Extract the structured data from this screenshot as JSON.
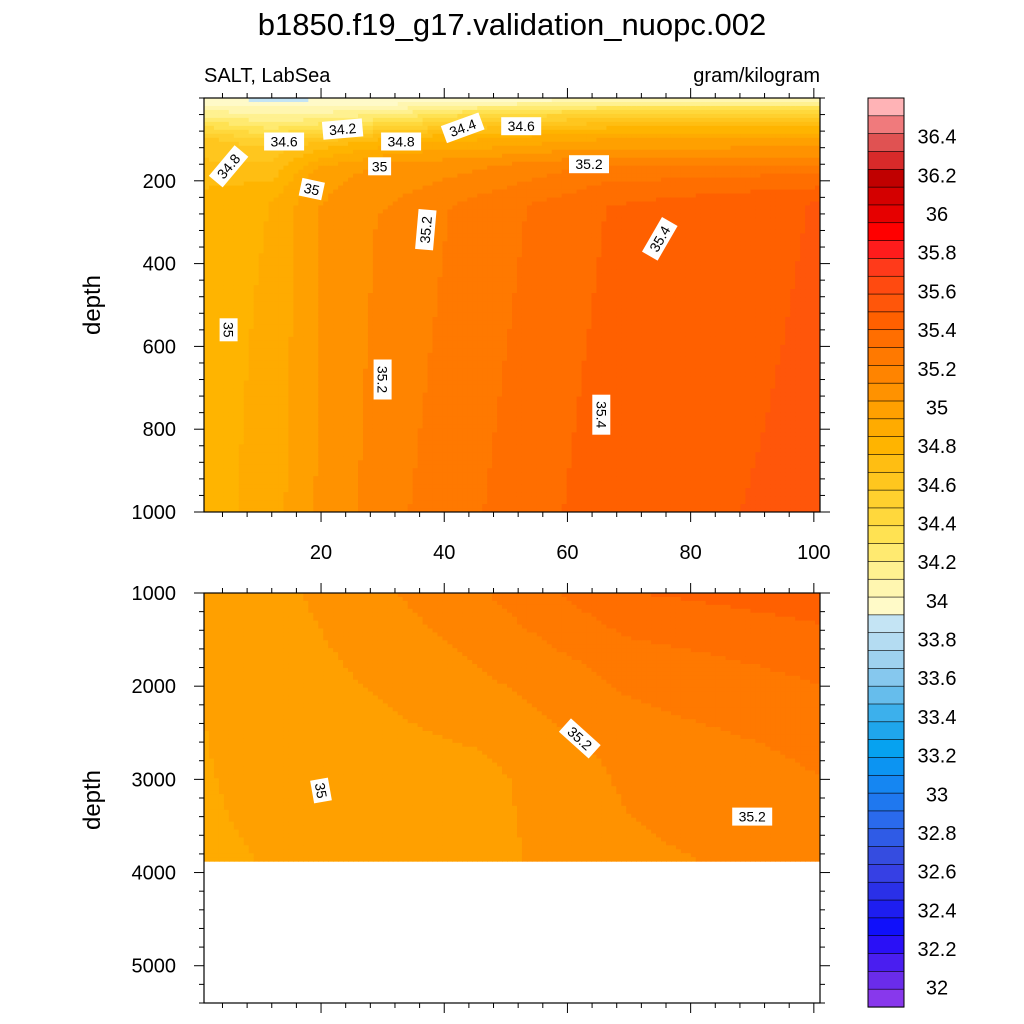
{
  "header": {
    "title": "b1850.f19_g17.validation_nuopc.002",
    "left_label": "SALT, LabSea",
    "right_label": "gram/kilogram"
  },
  "chart_data": [
    {
      "type": "heatmap",
      "panel": "upper",
      "ylabel": "depth",
      "xlim": [
        1,
        101
      ],
      "ylim": [
        1000,
        0
      ],
      "y_reversed": true,
      "x_ticks": [
        20,
        40,
        60,
        80,
        100
      ],
      "y_ticks": [
        200,
        400,
        600,
        800,
        1000
      ],
      "contour_interval": 0.1,
      "columns": [
        {
          "x": 1,
          "profile": [
            [
              0,
              33.9
            ],
            [
              100,
              34.6
            ],
            [
              250,
              34.8
            ],
            [
              1000,
              34.8
            ]
          ]
        },
        {
          "x": 12,
          "profile": [
            [
              0,
              33.9
            ],
            [
              60,
              34.2
            ],
            [
              120,
              34.6
            ],
            [
              250,
              34.85
            ],
            [
              1000,
              34.9
            ]
          ]
        },
        {
          "x": 20,
          "profile": [
            [
              0,
              33.9
            ],
            [
              50,
              34.2
            ],
            [
              110,
              34.7
            ],
            [
              180,
              35.0
            ],
            [
              300,
              35.05
            ],
            [
              1000,
              35.05
            ]
          ]
        },
        {
          "x": 32,
          "profile": [
            [
              0,
              33.9
            ],
            [
              50,
              34.3
            ],
            [
              100,
              34.8
            ],
            [
              160,
              35.05
            ],
            [
              280,
              35.15
            ],
            [
              1000,
              35.2
            ]
          ]
        },
        {
          "x": 45,
          "profile": [
            [
              0,
              33.9
            ],
            [
              40,
              34.4
            ],
            [
              90,
              34.8
            ],
            [
              160,
              35.1
            ],
            [
              260,
              35.25
            ],
            [
              1000,
              35.3
            ]
          ]
        },
        {
          "x": 66,
          "profile": [
            [
              0,
              34.0
            ],
            [
              40,
              34.5
            ],
            [
              90,
              34.9
            ],
            [
              170,
              35.25
            ],
            [
              260,
              35.4
            ],
            [
              1000,
              35.45
            ]
          ]
        },
        {
          "x": 101,
          "profile": [
            [
              0,
              34.0
            ],
            [
              40,
              34.5
            ],
            [
              90,
              34.9
            ],
            [
              180,
              35.3
            ],
            [
              250,
              35.5
            ],
            [
              1000,
              35.52
            ]
          ]
        }
      ],
      "contour_labels": [
        {
          "text": "34.2",
          "x": 23.5,
          "y": 75,
          "angle": -5
        },
        {
          "text": "34.4",
          "x": 43,
          "y": 72,
          "angle": -20
        },
        {
          "text": "34.6",
          "x": 52.5,
          "y": 68,
          "angle": 0
        },
        {
          "text": "34.6",
          "x": 14,
          "y": 105,
          "angle": 0
        },
        {
          "text": "34.8",
          "x": 33,
          "y": 105,
          "angle": 0
        },
        {
          "text": "34.8",
          "x": 5,
          "y": 165,
          "angle": -50
        },
        {
          "text": "35",
          "x": 29.5,
          "y": 165,
          "angle": 0
        },
        {
          "text": "35",
          "x": 18.5,
          "y": 220,
          "angle": 12
        },
        {
          "text": "35.2",
          "x": 63.5,
          "y": 160,
          "angle": 0
        },
        {
          "text": "35.2",
          "x": 37,
          "y": 318,
          "angle": -85
        },
        {
          "text": "35.4",
          "x": 75,
          "y": 340,
          "angle": -60
        },
        {
          "text": "35",
          "x": 5,
          "y": 560,
          "angle": 90
        },
        {
          "text": "35.2",
          "x": 30,
          "y": 680,
          "angle": 90
        },
        {
          "text": "35.4",
          "x": 65.5,
          "y": 765,
          "angle": 90
        }
      ]
    },
    {
      "type": "heatmap",
      "panel": "lower",
      "ylabel": "depth",
      "xlim": [
        1,
        101
      ],
      "ylim": [
        5400,
        1000
      ],
      "y_reversed": true,
      "seafloor_depth": 3870,
      "y_ticks": [
        1000,
        2000,
        3000,
        4000,
        5000
      ],
      "contour_interval": 0.1,
      "columns": [
        {
          "x": 1,
          "profile": [
            [
              1000,
              34.95
            ],
            [
              4000,
              34.93
            ]
          ]
        },
        {
          "x": 20,
          "profile": [
            [
              1000,
              35.05
            ],
            [
              2200,
              35.0
            ],
            [
              4000,
              34.95
            ]
          ]
        },
        {
          "x": 45,
          "profile": [
            [
              1000,
              35.2
            ],
            [
              2000,
              35.1
            ],
            [
              3000,
              35.0
            ],
            [
              4000,
              35.0
            ]
          ]
        },
        {
          "x": 70,
          "profile": [
            [
              1000,
              35.4
            ],
            [
              1800,
              35.25
            ],
            [
              2800,
              35.15
            ],
            [
              4000,
              35.1
            ]
          ]
        },
        {
          "x": 101,
          "profile": [
            [
              1000,
              35.45
            ],
            [
              1900,
              35.32
            ],
            [
              2600,
              35.24
            ],
            [
              3600,
              35.18
            ],
            [
              4000,
              35.15
            ]
          ]
        }
      ],
      "contour_labels": [
        {
          "text": "35",
          "x": 20,
          "y": 3120,
          "angle": 80
        },
        {
          "text": "35.2",
          "x": 62,
          "y": 2560,
          "angle": 42
        },
        {
          "text": "35.2",
          "x": 90,
          "y": 3400,
          "angle": 0
        }
      ]
    }
  ],
  "colorbar": {
    "labels": [
      "36.4",
      "36.2",
      "36",
      "35.8",
      "35.6",
      "35.4",
      "35.2",
      "35",
      "34.8",
      "34.6",
      "34.4",
      "34.2",
      "34",
      "33.8",
      "33.6",
      "33.4",
      "33.2",
      "33",
      "32.8",
      "32.6",
      "32.4",
      "32.2",
      "32"
    ],
    "colors": [
      "#ffb3b6",
      "#f07a7c",
      "#e05252",
      "#d82a2a",
      "#c00000",
      "#d40000",
      "#e60000",
      "#ff0000",
      "#ff1c1c",
      "#ff3a1a",
      "#ff4a10",
      "#ff560a",
      "#ff6000",
      "#ff6e00",
      "#ff7900",
      "#ff8400",
      "#ff9200",
      "#ffa000",
      "#ffab00",
      "#ffb400",
      "#ffbe12",
      "#ffc61e",
      "#ffd02e",
      "#ffd83c",
      "#ffe252",
      "#ffea70",
      "#fff190",
      "#fff6b0",
      "#fffac8",
      "#c4e4f4",
      "#b4dcf2",
      "#9ed2ef",
      "#86c8ee",
      "#66bdec",
      "#3cb0ec",
      "#1fa6ec",
      "#06a2f0",
      "#0c94f2",
      "#1586f2",
      "#1f78ef",
      "#2a6aec",
      "#2f5be6",
      "#354ce0",
      "#3640e4",
      "#2a30e8",
      "#1e1ef0",
      "#1010fa",
      "#2a10f6",
      "#4a1ef0",
      "#6a2cea",
      "#8838ec"
    ]
  }
}
